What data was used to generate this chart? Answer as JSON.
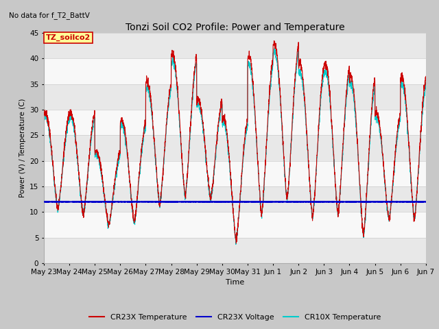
{
  "title": "Tonzi Soil CO2 Profile: Power and Temperature",
  "subtitle": "No data for f_T2_BattV",
  "xlabel": "Time",
  "ylabel": "Power (V) / Temperature (C)",
  "ylim": [
    0,
    45
  ],
  "xtick_labels": [
    "May 23",
    "May 24",
    "May 25",
    "May 26",
    "May 27",
    "May 28",
    "May 29",
    "May 30",
    "May 31",
    "Jun 1",
    "Jun 2",
    "Jun 3",
    "Jun 4",
    "Jun 5",
    "Jun 6",
    "Jun 7"
  ],
  "annotation_box": "TZ_soilco2",
  "annotation_color": "#cc0000",
  "annotation_bg": "#ffff99",
  "plot_bg_colors": [
    "#e8e8e8",
    "#f0f0f0"
  ],
  "cr23x_temp_color": "#cc0000",
  "cr23x_volt_color": "#0000cc",
  "cr10x_temp_color": "#00cccc",
  "legend_labels": [
    "CR23X Temperature",
    "CR23X Voltage",
    "CR10X Temperature"
  ],
  "day_peaks": [
    29.5,
    29.5,
    22.0,
    28.0,
    35.5,
    41.0,
    32.0,
    28.5,
    40.5,
    43.0,
    39.0,
    39.0,
    36.5,
    29.5,
    36.5
  ],
  "day_troughs": [
    10.5,
    9.5,
    7.5,
    8.0,
    11.5,
    13.0,
    12.5,
    4.5,
    9.5,
    12.5,
    9.0,
    9.5,
    5.5,
    8.5,
    8.5
  ],
  "volt_level": 12.0
}
